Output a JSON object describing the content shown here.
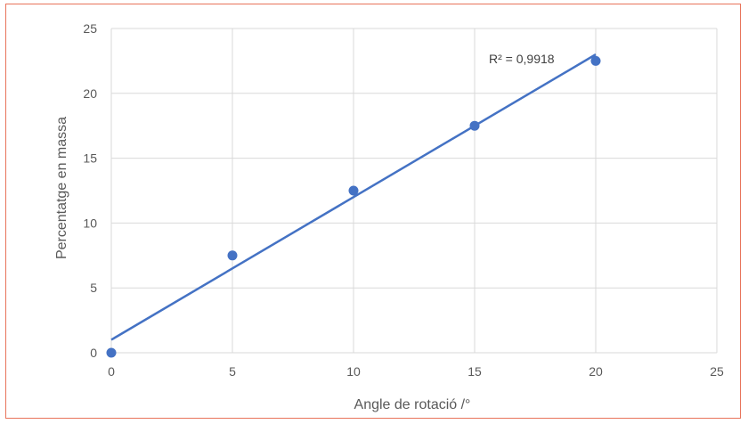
{
  "chart_data": {
    "type": "scatter",
    "title": "",
    "xlabel": "Angle de rotació /°",
    "ylabel": "Percentatge en massa",
    "xlim": [
      0,
      25
    ],
    "ylim": [
      0,
      25
    ],
    "xticks": [
      0,
      5,
      10,
      15,
      20,
      25
    ],
    "yticks": [
      0,
      5,
      10,
      15,
      20,
      25
    ],
    "grid": true,
    "legend": "none",
    "points": [
      {
        "x": 0,
        "y": 0
      },
      {
        "x": 5,
        "y": 7.5
      },
      {
        "x": 10,
        "y": 12.5
      },
      {
        "x": 15,
        "y": 17.5
      },
      {
        "x": 20,
        "y": 22.5
      }
    ],
    "trendline": {
      "type": "linear",
      "x_start": 0,
      "y_start": 1.0,
      "x_end": 20,
      "y_end": 23.0
    },
    "annotation": "R² = 0,9918",
    "colors": {
      "series": "#4472c4",
      "grid": "#d9d9d9",
      "frame": "#e8735a",
      "text": "#595959"
    }
  }
}
